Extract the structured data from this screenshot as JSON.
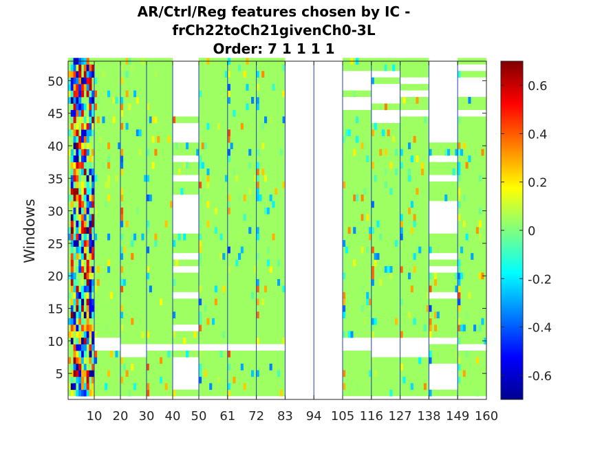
{
  "chart_data": {
    "type": "heatmap",
    "title_lines": [
      "AR/Ctrl/Reg features chosen by IC -",
      "frCh22toCh21givenCh0-3L",
      "Order: 7 1 1 1 1"
    ],
    "ylabel": "Windows",
    "xlabel": "",
    "x_ticks": [
      "10",
      "20",
      "30",
      "40",
      "50",
      "61",
      "72",
      "83",
      "94",
      "105",
      "116",
      "127",
      "138",
      "149",
      "160"
    ],
    "y_ticks": [
      "5",
      "10",
      "15",
      "20",
      "25",
      "30",
      "35",
      "40",
      "45",
      "50"
    ],
    "xlim": [
      0,
      160
    ],
    "ylim": [
      1,
      53
    ],
    "colorbar": {
      "ticks": [
        "0.6",
        "0.4",
        "0.2",
        "0",
        "-0.2",
        "-0.4",
        "-0.6"
      ],
      "tick_values": [
        0.6,
        0.4,
        0.2,
        0,
        -0.2,
        -0.4,
        -0.6
      ],
      "range": [
        -0.7,
        0.7
      ],
      "colormap": "jet"
    },
    "feature_groups": [
      {
        "range": [
          1,
          10
        ],
        "blank_windows": []
      },
      {
        "range": [
          11,
          20
        ],
        "blank_windows": [
          9,
          10
        ]
      },
      {
        "range": [
          21,
          30
        ],
        "blank_windows": [
          8,
          9
        ]
      },
      {
        "range": [
          31,
          40
        ],
        "blank_windows": [
          9
        ]
      },
      {
        "range": [
          41,
          50
        ],
        "blank_windows": [
          3,
          4,
          5,
          6,
          7,
          9,
          12,
          17,
          21,
          23,
          27,
          28,
          29,
          30,
          31,
          32,
          35,
          38,
          41,
          42,
          43,
          45,
          46,
          47,
          48,
          49,
          50,
          51,
          52,
          53
        ]
      },
      {
        "range": [
          51,
          61
        ],
        "blank_windows": [
          9
        ]
      },
      {
        "range": [
          62,
          72
        ],
        "blank_windows": [
          9
        ]
      },
      {
        "range": [
          73,
          83
        ],
        "blank_windows": [
          9
        ]
      },
      {
        "range": [
          84,
          94
        ],
        "blank_windows": "all"
      },
      {
        "range": [
          95,
          105
        ],
        "blank_windows": "all"
      },
      {
        "range": [
          106,
          116
        ],
        "blank_windows": [
          9,
          10,
          46,
          47,
          49,
          50,
          51
        ]
      },
      {
        "range": [
          117,
          127
        ],
        "blank_windows": [
          8,
          9,
          10,
          44,
          45,
          47,
          48,
          49,
          51
        ]
      },
      {
        "range": [
          128,
          138
        ],
        "blank_windows": [
          8,
          9,
          10,
          45,
          48,
          50
        ]
      },
      {
        "range": [
          139,
          149
        ],
        "blank_windows": [
          3,
          4,
          5,
          6,
          10,
          17,
          21,
          23,
          27,
          28,
          29,
          30,
          31,
          35,
          38,
          41,
          42,
          43,
          44,
          45,
          46,
          47,
          48,
          49,
          50,
          51,
          52,
          53
        ]
      },
      {
        "range": [
          150,
          160
        ],
        "blank_windows": [
          9,
          45,
          48,
          49,
          50,
          52
        ]
      }
    ],
    "grid": false,
    "legend": "none"
  }
}
